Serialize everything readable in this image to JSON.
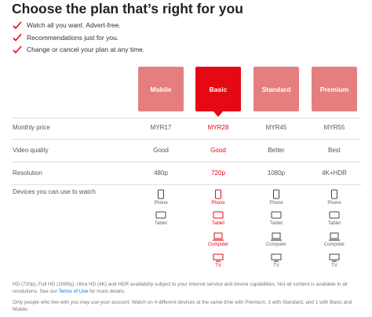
{
  "header": {
    "title": "Choose the plan that’s right for you"
  },
  "benefits": [
    "Watch all you want. Advert-free.",
    "Recommendations just for you.",
    "Change or cancel your plan at any time."
  ],
  "plans": [
    {
      "name": "Mobile",
      "selected": false
    },
    {
      "name": "Basic",
      "selected": true
    },
    {
      "name": "Standard",
      "selected": false
    },
    {
      "name": "Premium",
      "selected": false
    }
  ],
  "rows": [
    {
      "label": "Monthly price",
      "values": [
        "MYR17",
        "MYR28",
        "MYR45",
        "MYR55"
      ]
    },
    {
      "label": "Video quality",
      "values": [
        "Good",
        "Good",
        "Better",
        "Best"
      ]
    },
    {
      "label": "Resolution",
      "values": [
        "480p",
        "720p",
        "1080p",
        "4K+HDR"
      ]
    }
  ],
  "devices": {
    "label": "Devices you can use to watch",
    "plans": [
      [
        "Phone",
        "Tablet"
      ],
      [
        "Phone",
        "Tablet",
        "Computer",
        "TV"
      ],
      [
        "Phone",
        "Tablet",
        "Computer",
        "TV"
      ],
      [
        "Phone",
        "Tablet",
        "Computer",
        "TV"
      ]
    ]
  },
  "footnotes": [
    {
      "text": "HD (720p), Full HD (1080p), Ultra HD (4K) and HDR availability subject to your internet service and device capabilities. Not all content is available in all resolutions. See our ",
      "link": "Terms of Use",
      "after": " for more details."
    },
    {
      "text": "Only people who live with you may use your account. Watch on 4 different devices at the same time with Premium, 2 with Standard, and 1 with Basic and Mobile."
    }
  ]
}
